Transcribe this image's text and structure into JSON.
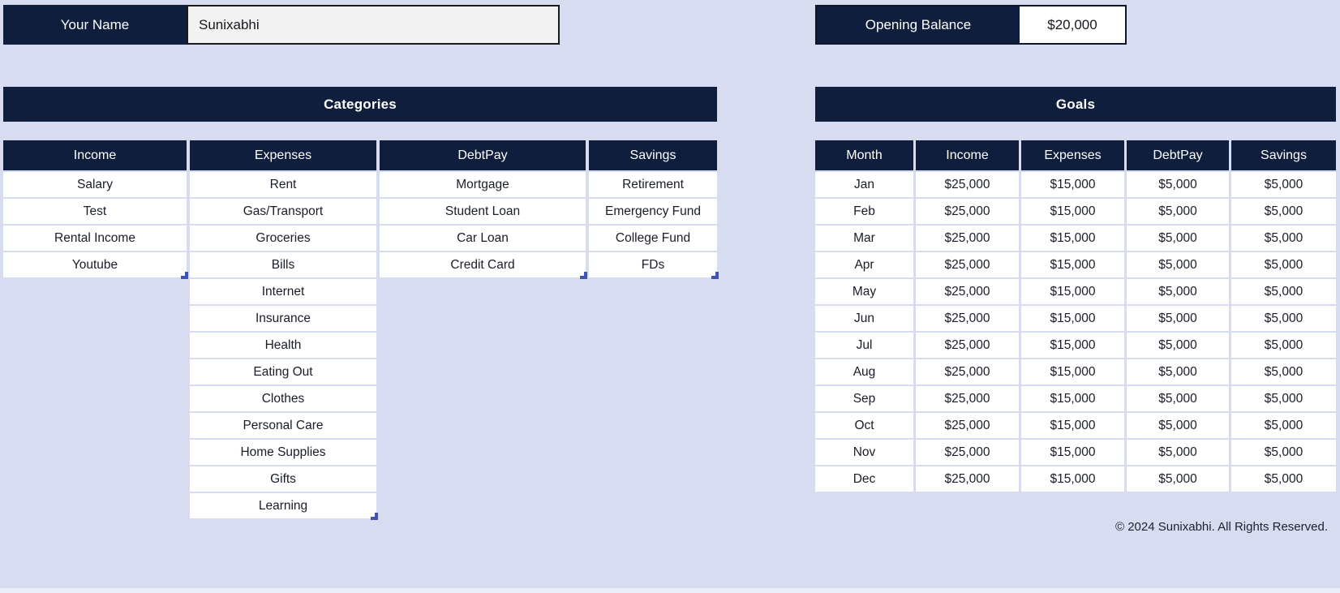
{
  "header": {
    "name_label": "Your Name",
    "name_value": "Sunixabhi",
    "balance_label": "Opening Balance",
    "balance_value": "$20,000"
  },
  "categories": {
    "title": "Categories",
    "columns": [
      {
        "header": "Income",
        "items": [
          "Salary",
          "Test",
          "Rental Income",
          "Youtube"
        ]
      },
      {
        "header": "Expenses",
        "items": [
          "Rent",
          "Gas/Transport",
          "Groceries",
          "Bills",
          "Internet",
          "Insurance",
          "Health",
          "Eating Out",
          "Clothes",
          "Personal Care",
          "Home Supplies",
          "Gifts",
          "Learning"
        ]
      },
      {
        "header": "DebtPay",
        "items": [
          "Mortgage",
          "Student Loan",
          "Car Loan",
          "Credit Card"
        ]
      },
      {
        "header": "Savings",
        "items": [
          "Retirement",
          "Emergency Fund",
          "College Fund",
          "FDs"
        ]
      }
    ]
  },
  "goals": {
    "title": "Goals",
    "columns": [
      "Month",
      "Income",
      "Expenses",
      "DebtPay",
      "Savings"
    ],
    "rows": [
      [
        "Jan",
        "$25,000",
        "$15,000",
        "$5,000",
        "$5,000"
      ],
      [
        "Feb",
        "$25,000",
        "$15,000",
        "$5,000",
        "$5,000"
      ],
      [
        "Mar",
        "$25,000",
        "$15,000",
        "$5,000",
        "$5,000"
      ],
      [
        "Apr",
        "$25,000",
        "$15,000",
        "$5,000",
        "$5,000"
      ],
      [
        "May",
        "$25,000",
        "$15,000",
        "$5,000",
        "$5,000"
      ],
      [
        "Jun",
        "$25,000",
        "$15,000",
        "$5,000",
        "$5,000"
      ],
      [
        "Jul",
        "$25,000",
        "$15,000",
        "$5,000",
        "$5,000"
      ],
      [
        "Aug",
        "$25,000",
        "$15,000",
        "$5,000",
        "$5,000"
      ],
      [
        "Sep",
        "$25,000",
        "$15,000",
        "$5,000",
        "$5,000"
      ],
      [
        "Oct",
        "$25,000",
        "$15,000",
        "$5,000",
        "$5,000"
      ],
      [
        "Nov",
        "$25,000",
        "$15,000",
        "$5,000",
        "$5,000"
      ],
      [
        "Dec",
        "$25,000",
        "$15,000",
        "$5,000",
        "$5,000"
      ]
    ]
  },
  "footer": {
    "copyright": "© 2024 Sunixabhi. All Rights Reserved."
  },
  "colors": {
    "navy": "#0F1E3C",
    "bg": "#D8DCF0",
    "handle": "#4053B8",
    "cellText": "#191D29"
  }
}
